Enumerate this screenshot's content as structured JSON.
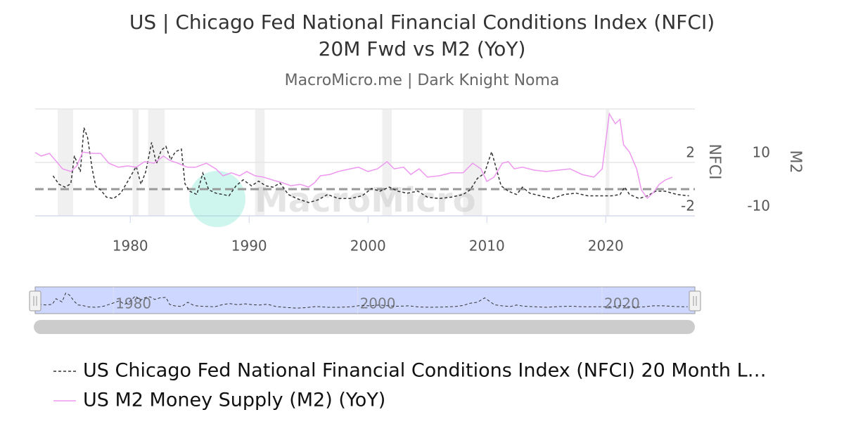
{
  "chart_data": {
    "type": "line",
    "title": [
      "US | Chicago Fed National Financial Conditions Index (NFCI)",
      "20M Fwd vs M2 (YoY)"
    ],
    "subtitle": "MacroMicro.me | Dark Knight Noma",
    "watermark": "MacroMicro",
    "y_label": "NFCI",
    "y2_label": "M2",
    "xlim": [
      1972,
      2027.5
    ],
    "xticks": [
      1980,
      1990,
      2000,
      2010,
      2020
    ],
    "ylim": [
      -2,
      6
    ],
    "yticks": [
      -2,
      2
    ],
    "y2lim": [
      -10,
      30
    ],
    "y2ticks": [
      -10,
      10
    ],
    "grid": true,
    "plot_line": 0,
    "recessions": [
      [
        1973.9,
        1975.2
      ],
      [
        1980.2,
        1980.7
      ],
      [
        1981.5,
        1982.9
      ],
      [
        1990.5,
        1991.3
      ],
      [
        2001.2,
        2002.0
      ],
      [
        2008.0,
        2009.6
      ],
      [
        2020.0,
        2020.3
      ]
    ],
    "series": [
      {
        "name": "US Chicago Fed National Financial Conditions Index (NFCI) 20 Month L…",
        "color": "#333333",
        "dashed": true,
        "x": [
          1973.5,
          1974.0,
          1974.5,
          1975,
          1975.3,
          1975.8,
          1976.1,
          1976.4,
          1976.8,
          1977.1,
          1977.5,
          1978,
          1978.6,
          1979.2,
          1979.8,
          1980.5,
          1980.9,
          1981.3,
          1981.8,
          1982.2,
          1982.6,
          1983,
          1983.4,
          1983.8,
          1984.3,
          1984.6,
          1985,
          1985.6,
          1986.1,
          1986.6,
          1987.2,
          1987.8,
          1988.3,
          1988.9,
          1989.5,
          1990.2,
          1990.8,
          1991.4,
          1992,
          1992.6,
          1993.3,
          1994,
          1995,
          1995.8,
          1996.6,
          1997.5,
          1998.5,
          1999.5,
          2000.3,
          2001,
          2001.8,
          2002.5,
          2003.3,
          2004.2,
          2005,
          2006,
          2007,
          2008,
          2008.6,
          2009.2,
          2009.8,
          2010.4,
          2010.8,
          2011.2,
          2011.8,
          2012.5,
          2013,
          2013.6,
          2014.5,
          2015.5,
          2016.5,
          2017.5,
          2018.5,
          2019.5,
          2020.5,
          2021.2,
          2021.6,
          2022,
          2022.8,
          2023.5,
          2024.2,
          2025,
          2026,
          2027
        ],
        "values": [
          1.0,
          0.37,
          0.15,
          0.4,
          2.5,
          1.3,
          4.6,
          3.9,
          1.5,
          0.2,
          -0.05,
          -0.6,
          -0.7,
          -0.3,
          0.6,
          1.7,
          0.37,
          1.3,
          3.5,
          1.9,
          2.9,
          3.2,
          2.2,
          2.8,
          3.0,
          0.4,
          -0.15,
          -0.4,
          1.2,
          -0.05,
          -0.3,
          -0.4,
          -0.5,
          0.25,
          0.7,
          0.25,
          0.6,
          0.25,
          0.15,
          0.45,
          -0.4,
          -0.7,
          -1.0,
          -0.8,
          -0.4,
          -0.7,
          -0.7,
          -0.5,
          0.05,
          -0.15,
          0.15,
          -0.15,
          -0.3,
          -0.15,
          -0.6,
          -0.7,
          -0.6,
          -0.4,
          -0.05,
          0.8,
          1.2,
          2.8,
          1.5,
          0.25,
          -0.15,
          -0.4,
          0.15,
          -0.3,
          -0.5,
          -0.7,
          -0.4,
          -0.3,
          -0.5,
          -0.5,
          -0.5,
          -0.4,
          0.15,
          -0.4,
          -0.7,
          -0.5,
          -0.15,
          -0.15,
          -0.4,
          -0.5
        ]
      },
      {
        "name": "US M2 Money Supply (M2) (YoY)",
        "color": "#ee98f0",
        "axis": "y2",
        "x": [
          1972,
          1972.5,
          1973.2,
          1973.8,
          1974.3,
          1975,
          1975.5,
          1976,
          1976.8,
          1977.5,
          1978.2,
          1979,
          1979.8,
          1980.5,
          1981.2,
          1982,
          1982.8,
          1983.3,
          1984,
          1984.8,
          1985.5,
          1986.4,
          1987.2,
          1987.8,
          1988.5,
          1989.2,
          1989.8,
          1990.5,
          1991.2,
          1992,
          1992.8,
          1993.5,
          1994.3,
          1995,
          1995.5,
          1996,
          1996.8,
          1997.5,
          1998.5,
          1999.2,
          2000,
          2000.8,
          2001.6,
          2002.2,
          2003,
          2003.6,
          2004.3,
          2005,
          2006,
          2007,
          2008,
          2008.8,
          2009.5,
          2010,
          2010.6,
          2011.3,
          2011.8,
          2012.3,
          2013,
          2014,
          2015,
          2016,
          2017,
          2018,
          2019,
          2019.7,
          2020.3,
          2020.8,
          2021.2,
          2021.5,
          2022,
          2022.6,
          2023,
          2023.5,
          2024,
          2024.5,
          2025,
          2025.6
        ],
        "values": [
          13.7,
          12.4,
          13.4,
          10.3,
          7.6,
          6.6,
          8.7,
          13.9,
          13.4,
          13.4,
          9.7,
          8.2,
          8.7,
          8.2,
          10.3,
          9.7,
          12.4,
          10.8,
          9.7,
          8.2,
          8.2,
          9.7,
          7.6,
          5.0,
          6.1,
          5.0,
          6.6,
          5.0,
          4.5,
          3.4,
          2.4,
          1.3,
          1.8,
          0.8,
          2.4,
          5.0,
          5.5,
          6.6,
          7.6,
          8.2,
          6.6,
          7.6,
          10.3,
          7.6,
          8.2,
          5.5,
          7.6,
          4.5,
          5.0,
          6.1,
          6.1,
          9.7,
          7.6,
          2.9,
          4.5,
          9.7,
          10.3,
          7.6,
          8.2,
          7.1,
          6.6,
          7.1,
          7.6,
          5.5,
          4.5,
          7.6,
          28.2,
          24.5,
          26.1,
          16.6,
          13.9,
          7.6,
          -0.3,
          -3.4,
          -1.3,
          1.8,
          3.4,
          4.5
        ]
      }
    ],
    "navigator": {
      "xlim": [
        1973.6,
        2027.6
      ],
      "xticks": [
        1980,
        2000,
        2020
      ]
    }
  }
}
